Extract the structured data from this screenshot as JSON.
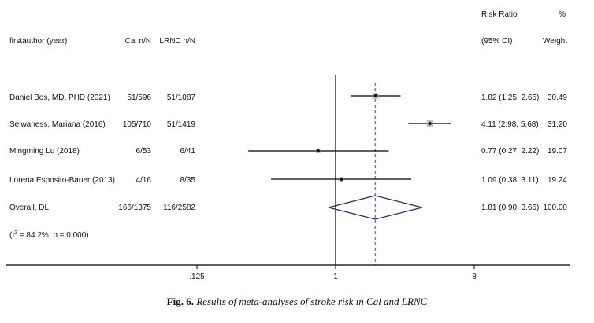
{
  "chart_data": {
    "type": "forest",
    "header": {
      "study": "firstauthor (year)",
      "group1": "Cal n/N",
      "group2": "LRNC n/N",
      "effect_top": "Risk Ratio",
      "effect_sub": "(95% CI)",
      "weight_top": "%",
      "weight_sub": "Weight"
    },
    "studies": [
      {
        "label": "Daniel Bos, MD, PHD (2021)",
        "g1": "51/596",
        "g2": "51/1087",
        "rr": 1.82,
        "lo": 1.25,
        "hi": 2.65,
        "ci_text": "1.82 (1.25, 2.65)",
        "weight": "30.49"
      },
      {
        "label": "Selwaness, Mariana (2016)",
        "g1": "105/710",
        "g2": "51/1419",
        "rr": 4.11,
        "lo": 2.98,
        "hi": 5.68,
        "ci_text": "4.11 (2.98, 5.68)",
        "weight": "31.20"
      },
      {
        "label": "Mingming Lu (2018)",
        "g1": "6/53",
        "g2": "6/41",
        "rr": 0.77,
        "lo": 0.27,
        "hi": 2.22,
        "ci_text": "0.77 (0.27, 2.22)",
        "weight": "19.07"
      },
      {
        "label": "Lorena Esposito-Bauer (2013)",
        "g1": "4/16",
        "g2": "8/35",
        "rr": 1.09,
        "lo": 0.38,
        "hi": 3.11,
        "ci_text": "1.09 (0.38, 3.11)",
        "weight": "19.24"
      }
    ],
    "overall": {
      "label": "Overall, DL",
      "g1": "166/1375",
      "g2": "116/2582",
      "rr": 1.81,
      "lo": 0.9,
      "hi": 3.66,
      "ci_text": "1.81 (0.90, 3.66)",
      "weight": "100.00"
    },
    "heterogeneity": {
      "prefix": "(I",
      "sup": "2",
      "rest": " = 84.2%, p = 0.000)"
    },
    "x_scale": "log",
    "xlim": [
      0.0625,
      10
    ],
    "x_ticks": [
      0.125,
      1,
      8
    ],
    "x_tick_labels": [
      ".125",
      "1",
      "8"
    ],
    "null_value": 1,
    "colors": {
      "line": "#000000",
      "marker": "#111111",
      "overall_diamond": "#1f2a7a",
      "overall_dashed": "#a0283c"
    }
  },
  "caption": {
    "label": "Fig. 6.",
    "text": "Results of meta-analyses of stroke risk in Cal and LRNC"
  }
}
